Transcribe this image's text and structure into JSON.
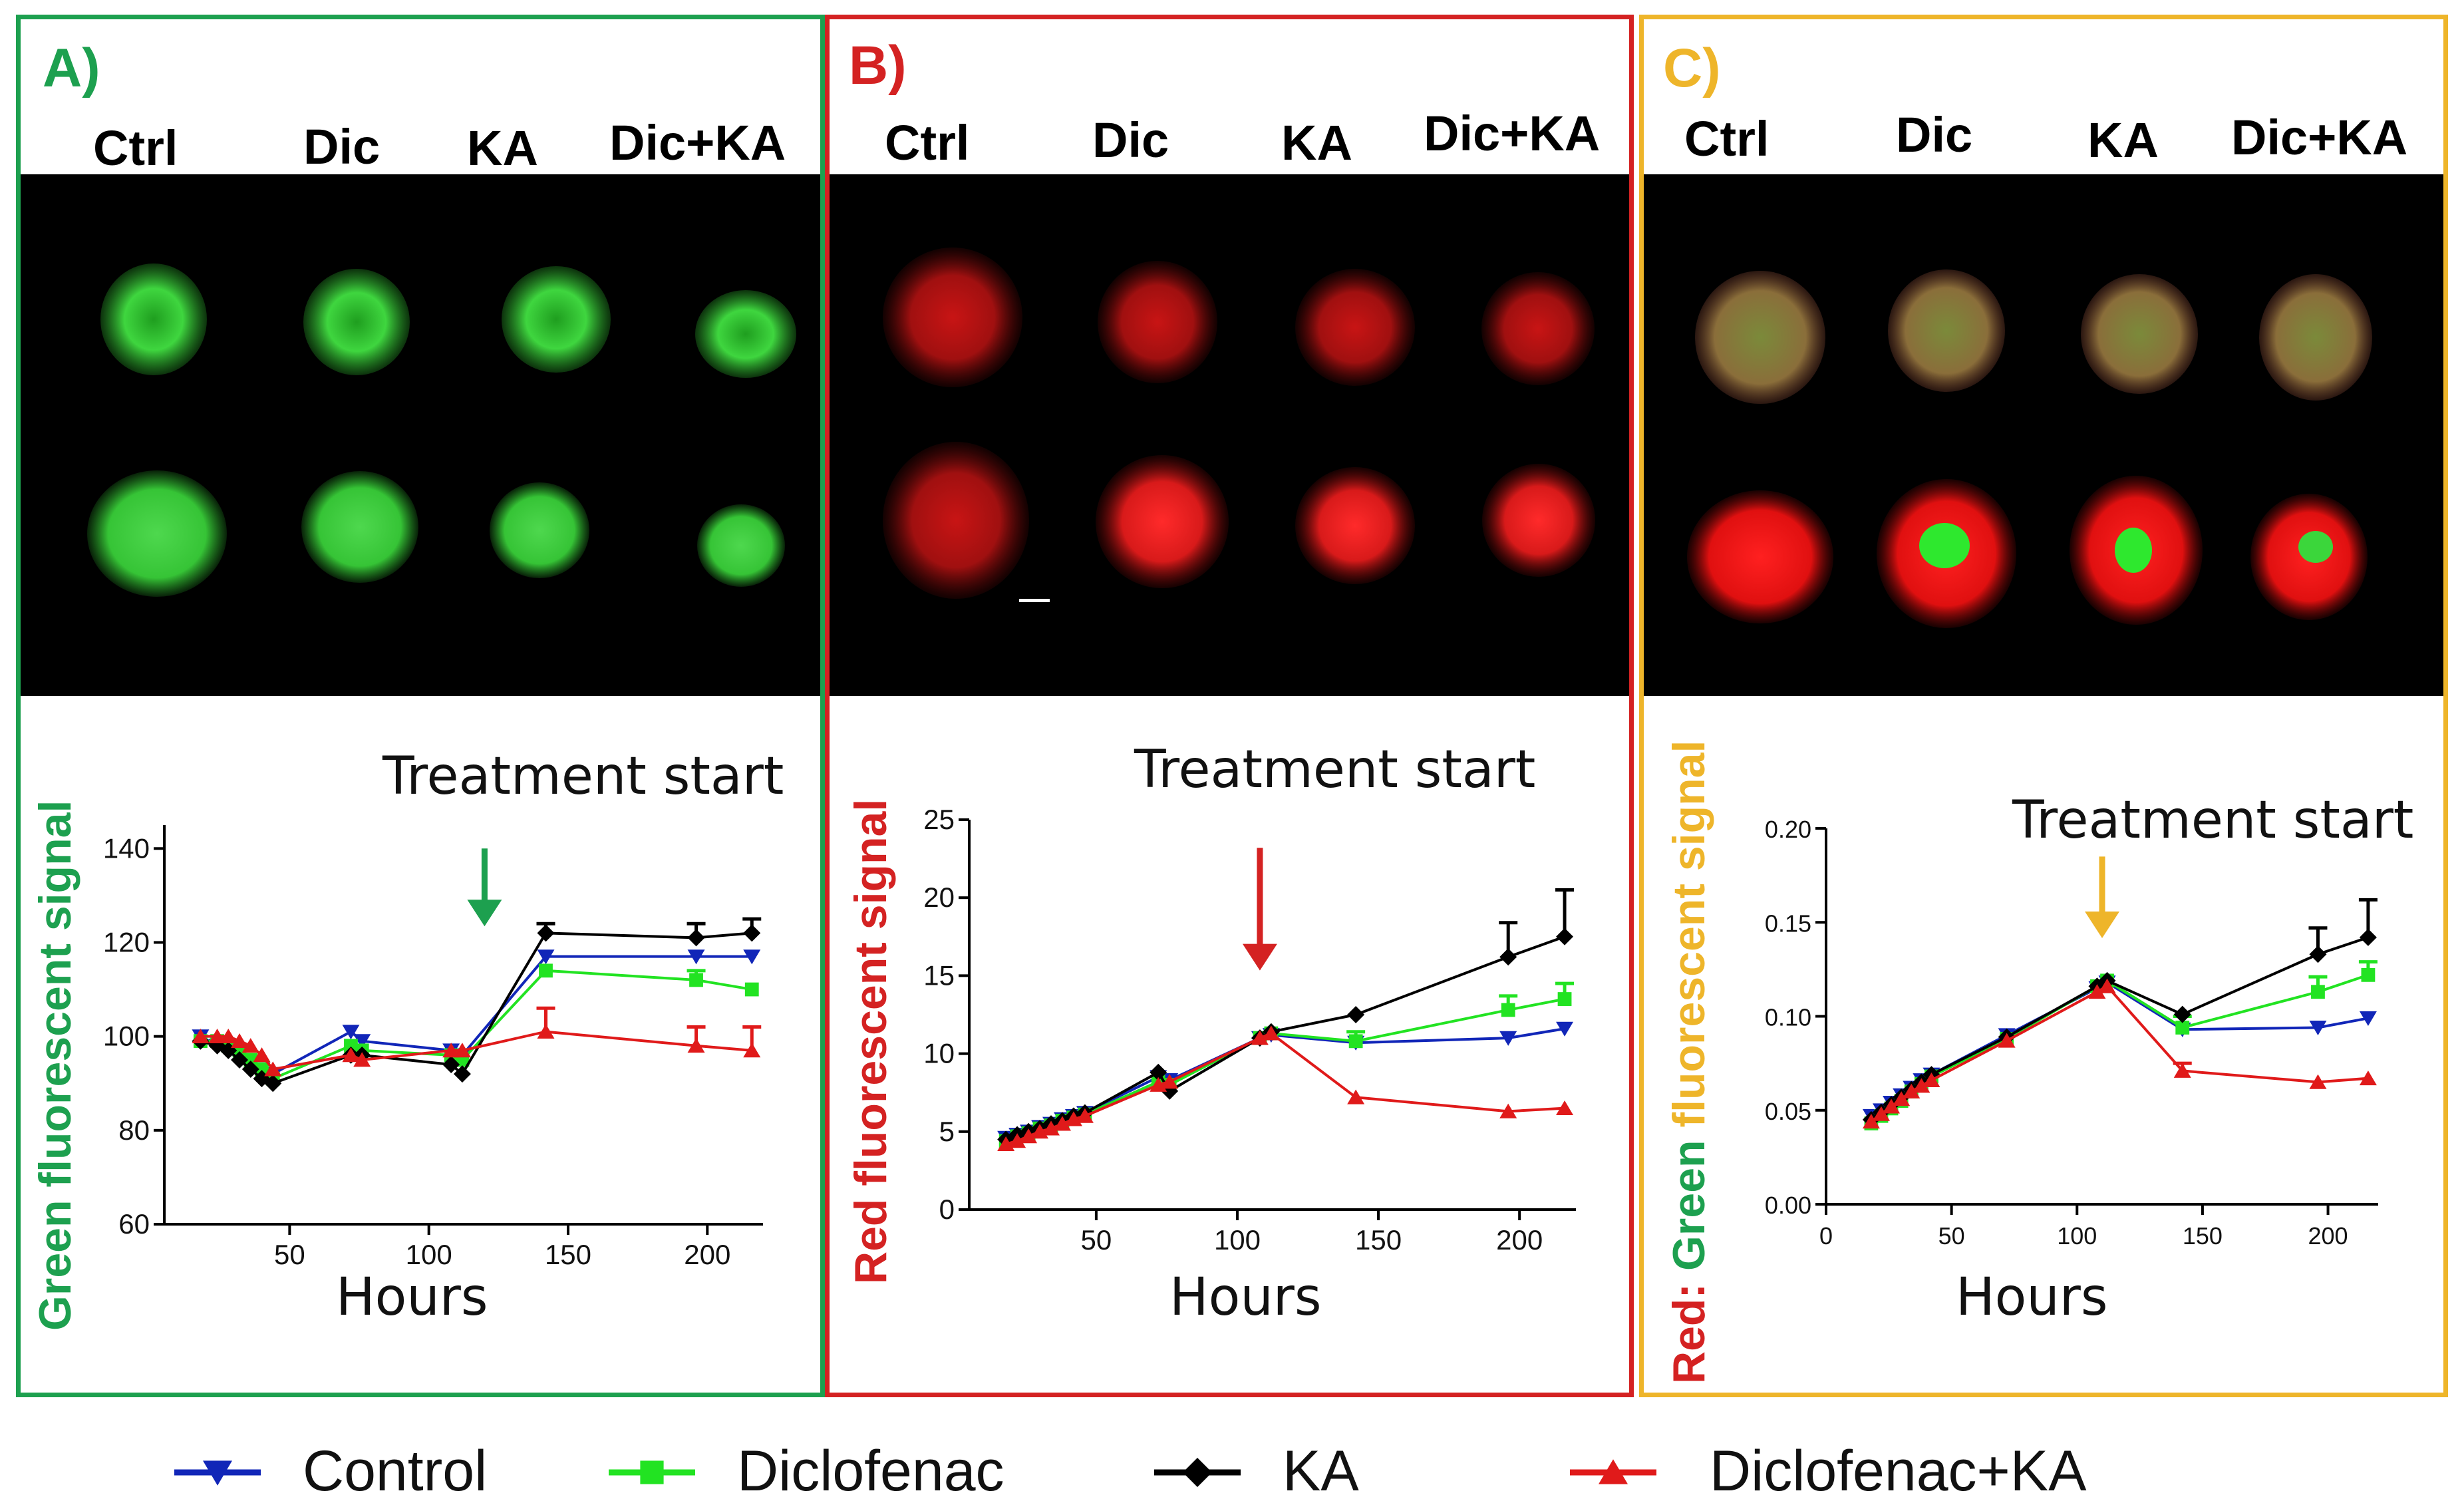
{
  "colors": {
    "A": "#1da04f",
    "B": "#d42222",
    "C": "#eeb52a",
    "control": "#1126b8",
    "diclofenac": "#22e322",
    "ka": "#000000",
    "dicka": "#e01a1a"
  },
  "column_labels": [
    "Ctrl",
    "Dic",
    "KA",
    "Dic+KA"
  ],
  "panels": {
    "A": {
      "letter": "A)",
      "treatment_label": "Treatment start",
      "xlabel": "Hours",
      "ylabel": "Green fluorescent signal"
    },
    "B": {
      "letter": "B)",
      "treatment_label": "Treatment start",
      "xlabel": "Hours",
      "ylabel": "Red fluorescent signal"
    },
    "C": {
      "letter": "C)",
      "treatment_label": "Treatment start",
      "xlabel": "Hours",
      "ylabel_red": "Red",
      "ylabel_colon": ": ",
      "ylabel_green": "Green",
      "ylabel_rest": " fluorescent signal"
    }
  },
  "legend": {
    "control": "Control",
    "diclofenac": "Diclofenac",
    "ka": "KA",
    "dicka": "Diclofenac+KA"
  },
  "chart_data": [
    {
      "id": "A",
      "type": "line",
      "title": "",
      "xlabel": "Hours",
      "ylabel": "Green fluorescent signal",
      "xlim": [
        5,
        220
      ],
      "ylim": [
        60,
        145
      ],
      "xticks": [
        50,
        100,
        150,
        200
      ],
      "yticks": [
        60,
        80,
        100,
        120,
        140
      ],
      "annotation": {
        "text": "Treatment start",
        "x": 120,
        "arrow_from": 140,
        "arrow_to": 124
      },
      "series": [
        {
          "name": "Control",
          "key": "control",
          "marker": "tri-down",
          "x": [
            18,
            24,
            28,
            32,
            36,
            40,
            44,
            72,
            76,
            108,
            112,
            142,
            196,
            216
          ],
          "y": [
            100,
            98,
            97,
            95,
            94,
            93,
            92,
            101,
            99,
            97,
            96,
            117,
            117,
            117
          ],
          "err": []
        },
        {
          "name": "Diclofenac",
          "key": "diclofenac",
          "marker": "square",
          "x": [
            18,
            24,
            28,
            32,
            36,
            40,
            44,
            72,
            76,
            108,
            112,
            142,
            196,
            216
          ],
          "y": [
            99,
            99,
            98,
            97,
            95,
            93,
            91,
            98,
            97,
            96,
            95,
            114,
            112,
            110
          ],
          "err": [
            [
              196,
              2
            ]
          ]
        },
        {
          "name": "KA",
          "key": "ka",
          "marker": "diamond",
          "x": [
            18,
            24,
            28,
            32,
            36,
            40,
            44,
            72,
            76,
            108,
            112,
            142,
            196,
            216
          ],
          "y": [
            99,
            98,
            97,
            95,
            93,
            91,
            90,
            96,
            96,
            94,
            92,
            122,
            121,
            122
          ],
          "err": [
            [
              196,
              3
            ],
            [
              216,
              3
            ],
            [
              142,
              2
            ]
          ]
        },
        {
          "name": "Diclofenac+KA",
          "key": "dicka",
          "marker": "tri-up",
          "x": [
            18,
            24,
            28,
            32,
            36,
            40,
            44,
            72,
            76,
            108,
            112,
            142,
            196,
            216
          ],
          "y": [
            100,
            100,
            100,
            99,
            98,
            96,
            93,
            96,
            95,
            97,
            97,
            101,
            98,
            97
          ],
          "err": [
            [
              142,
              5
            ],
            [
              196,
              4
            ],
            [
              216,
              5
            ]
          ]
        }
      ]
    },
    {
      "id": "B",
      "type": "line",
      "title": "",
      "xlabel": "Hours",
      "ylabel": "Red fluorescent signal",
      "xlim": [
        5,
        220
      ],
      "ylim": [
        0,
        25
      ],
      "xticks": [
        50,
        100,
        150,
        200
      ],
      "yticks": [
        0,
        5,
        10,
        15,
        20,
        25
      ],
      "annotation": {
        "text": "Treatment start",
        "x": 108,
        "arrow_from": 23.2,
        "arrow_to": 15.5
      },
      "series": [
        {
          "name": "Control",
          "key": "control",
          "marker": "tri-down",
          "x": [
            18,
            22,
            26,
            30,
            34,
            38,
            42,
            46,
            72,
            76,
            108,
            112,
            142,
            196,
            216
          ],
          "y": [
            4.6,
            4.8,
            5.0,
            5.3,
            5.5,
            5.8,
            6.0,
            6.2,
            8.5,
            8.3,
            11.0,
            11.2,
            10.7,
            11.0,
            11.6
          ],
          "err": []
        },
        {
          "name": "Diclofenac",
          "key": "diclofenac",
          "marker": "square",
          "x": [
            18,
            22,
            26,
            30,
            34,
            38,
            42,
            46,
            72,
            76,
            108,
            112,
            142,
            196,
            216
          ],
          "y": [
            4.4,
            4.7,
            4.9,
            5.2,
            5.4,
            5.7,
            5.9,
            6.1,
            8.2,
            8.0,
            11.0,
            11.3,
            10.8,
            12.8,
            13.5
          ],
          "err": [
            [
              142,
              0.6
            ],
            [
              196,
              0.9
            ],
            [
              216,
              1.0
            ]
          ]
        },
        {
          "name": "KA",
          "key": "ka",
          "marker": "diamond",
          "x": [
            18,
            22,
            26,
            30,
            34,
            38,
            42,
            46,
            72,
            76,
            108,
            112,
            142,
            196,
            216
          ],
          "y": [
            4.5,
            4.8,
            5.0,
            5.2,
            5.5,
            5.7,
            6.0,
            6.2,
            8.8,
            7.6,
            11.0,
            11.4,
            12.5,
            16.2,
            17.5
          ],
          "err": [
            [
              196,
              2.2
            ],
            [
              216,
              3.0
            ]
          ]
        },
        {
          "name": "Diclofenac+KA",
          "key": "dicka",
          "marker": "tri-up",
          "x": [
            18,
            22,
            26,
            30,
            34,
            38,
            42,
            46,
            72,
            76,
            108,
            112,
            142,
            196,
            216
          ],
          "y": [
            4.2,
            4.4,
            4.7,
            5.0,
            5.2,
            5.5,
            5.8,
            6.0,
            8.0,
            8.2,
            11.0,
            11.3,
            7.2,
            6.3,
            6.5
          ],
          "err": []
        }
      ]
    },
    {
      "id": "C",
      "type": "line",
      "title": "",
      "xlabel": "Hours",
      "ylabel": "Red: Green fluorescent signal",
      "xlim": [
        0,
        220
      ],
      "ylim": [
        0,
        0.2
      ],
      "xticks": [
        0,
        50,
        100,
        150,
        200
      ],
      "yticks": [
        0.0,
        0.05,
        0.1,
        0.15,
        0.2
      ],
      "ytick_labels": [
        "0.00",
        "0.05",
        "0.10",
        "0.15",
        "0.20"
      ],
      "annotation": {
        "text": "Treatment start",
        "x": 110,
        "arrow_from": 0.185,
        "arrow_to": 0.143
      },
      "series": [
        {
          "name": "Control",
          "key": "control",
          "marker": "tri-down",
          "x": [
            18,
            22,
            26,
            30,
            34,
            38,
            42,
            72,
            108,
            112,
            142,
            196,
            216
          ],
          "y": [
            0.047,
            0.05,
            0.054,
            0.058,
            0.062,
            0.066,
            0.069,
            0.09,
            0.115,
            0.118,
            0.093,
            0.094,
            0.099
          ],
          "err": []
        },
        {
          "name": "Diclofenac",
          "key": "diclofenac",
          "marker": "square",
          "x": [
            18,
            22,
            26,
            30,
            34,
            38,
            42,
            72,
            108,
            112,
            142,
            196,
            216
          ],
          "y": [
            0.043,
            0.047,
            0.051,
            0.055,
            0.06,
            0.064,
            0.068,
            0.088,
            0.116,
            0.119,
            0.094,
            0.113,
            0.122
          ],
          "err": [
            [
              142,
              0.006
            ],
            [
              196,
              0.008
            ],
            [
              216,
              0.007
            ]
          ]
        },
        {
          "name": "KA",
          "key": "ka",
          "marker": "diamond",
          "x": [
            18,
            22,
            26,
            30,
            34,
            38,
            42,
            72,
            108,
            112,
            142,
            196,
            216
          ],
          "y": [
            0.045,
            0.049,
            0.053,
            0.057,
            0.061,
            0.065,
            0.069,
            0.089,
            0.116,
            0.119,
            0.101,
            0.133,
            0.142
          ],
          "err": [
            [
              196,
              0.014
            ],
            [
              216,
              0.02
            ]
          ]
        },
        {
          "name": "Diclofenac+KA",
          "key": "dicka",
          "marker": "tri-up",
          "x": [
            18,
            22,
            26,
            30,
            34,
            38,
            42,
            72,
            108,
            112,
            142,
            196,
            216
          ],
          "y": [
            0.044,
            0.048,
            0.052,
            0.056,
            0.06,
            0.063,
            0.066,
            0.087,
            0.113,
            0.116,
            0.071,
            0.065,
            0.067
          ],
          "err": [
            [
              142,
              0.004
            ]
          ]
        }
      ]
    }
  ]
}
